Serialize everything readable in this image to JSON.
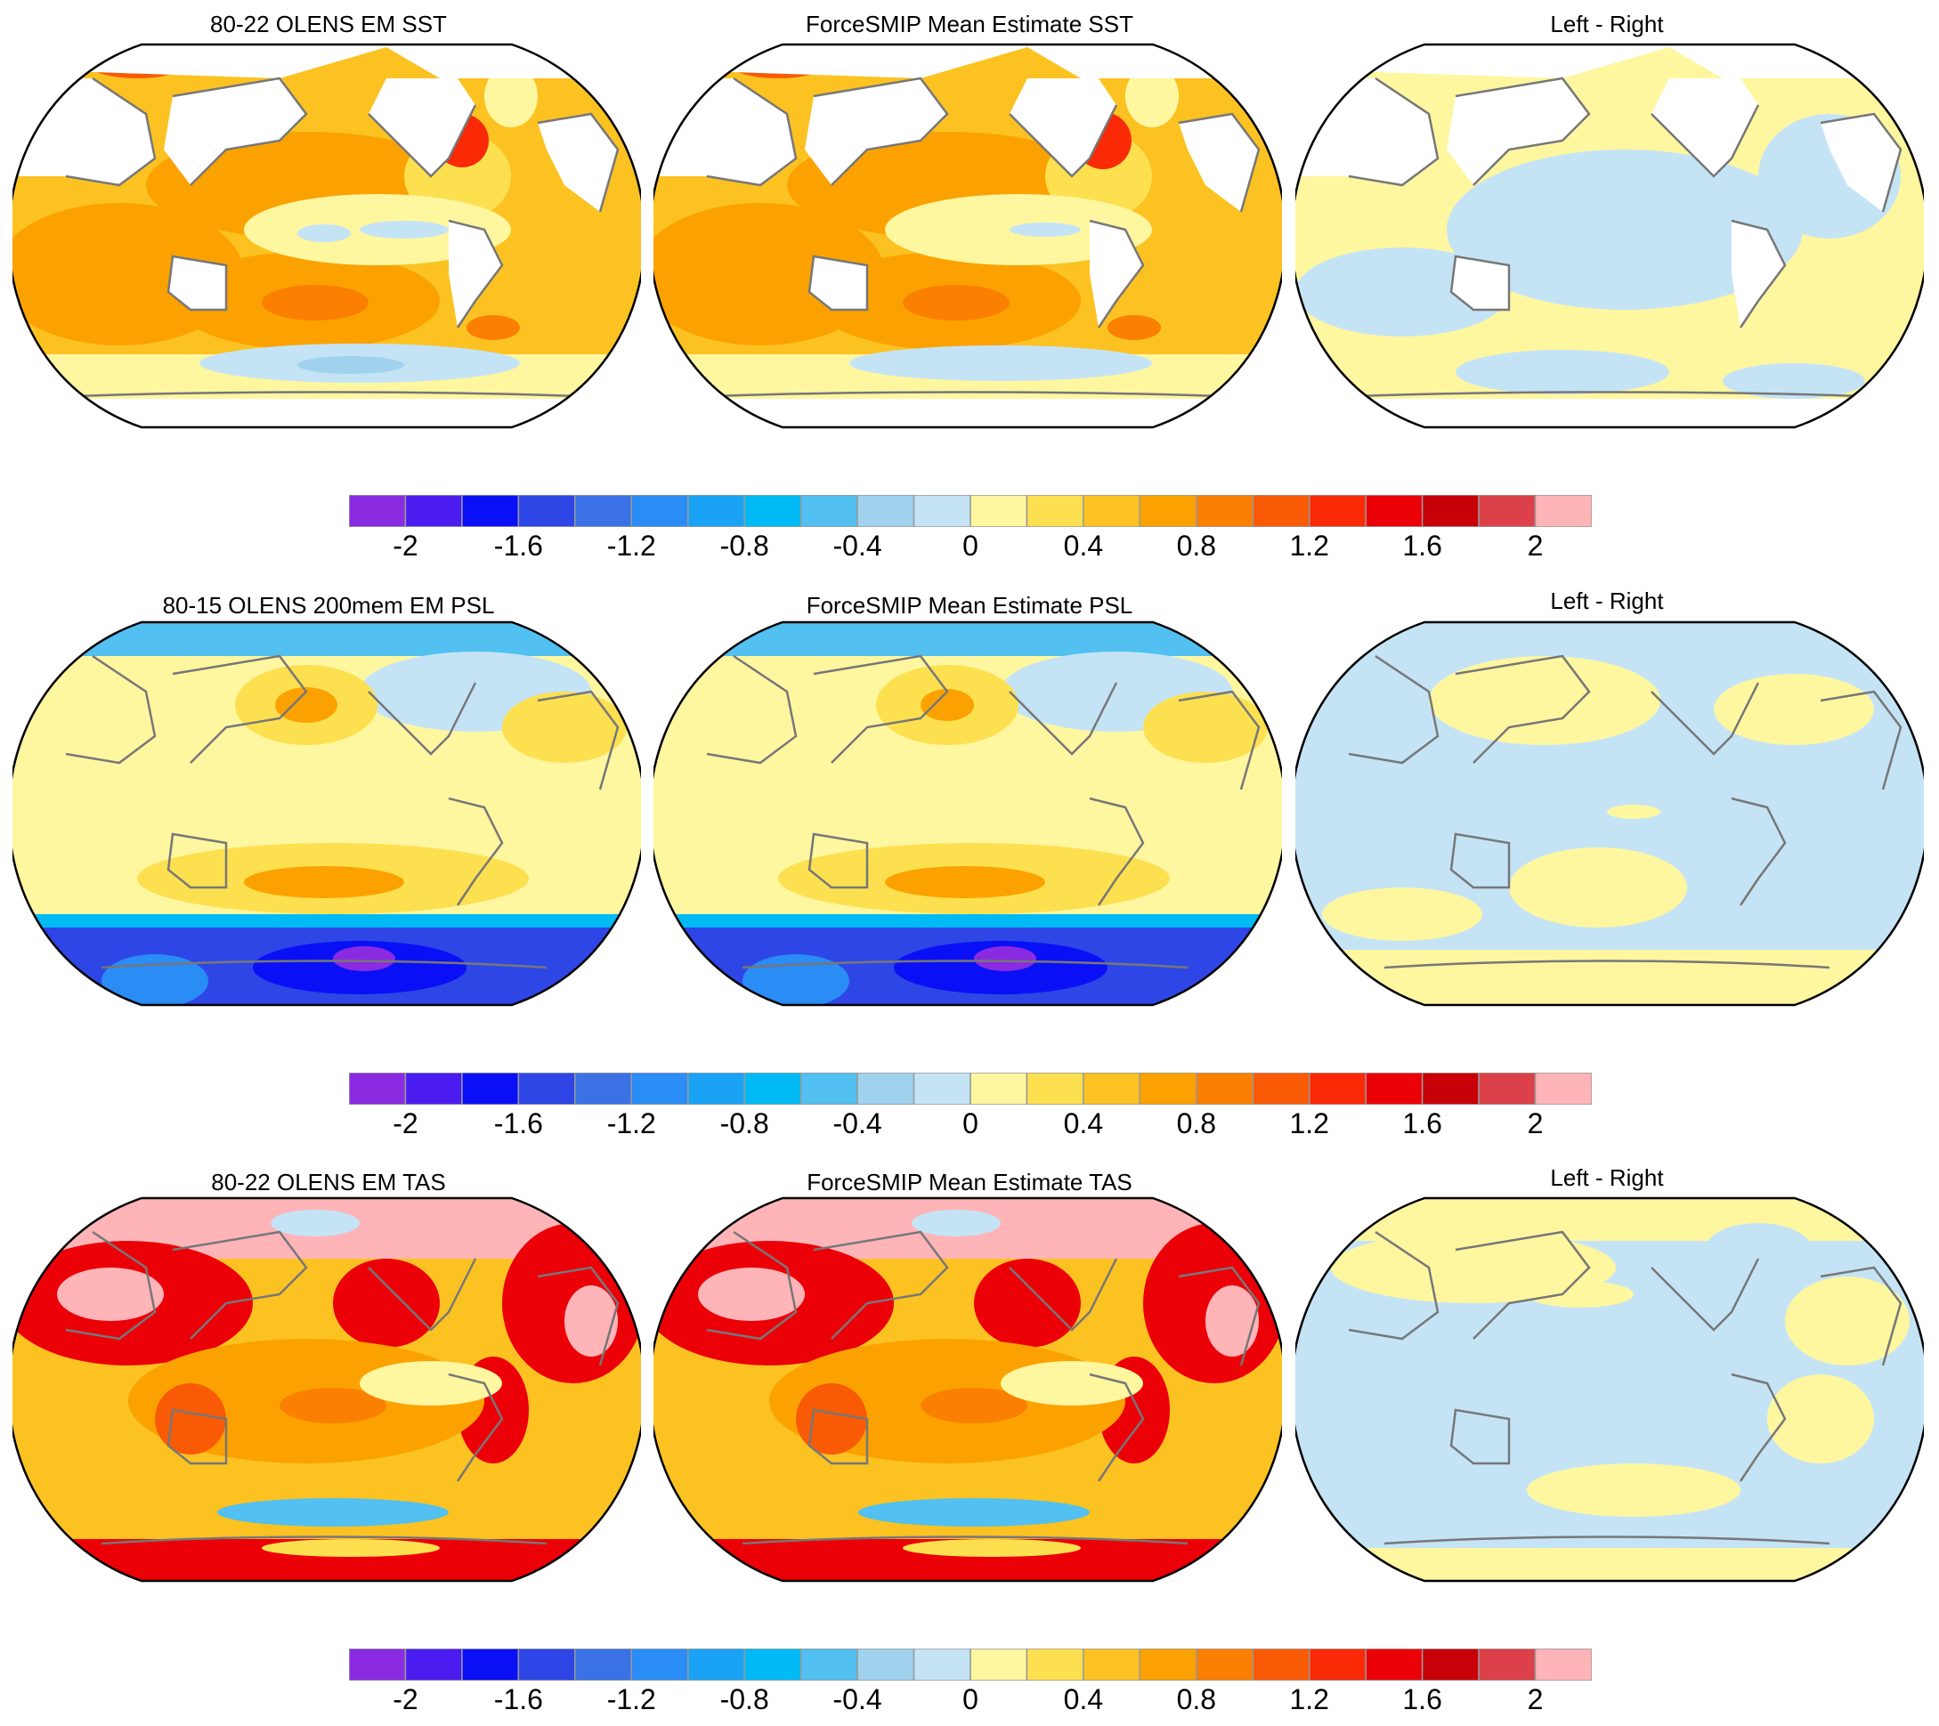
{
  "rows": [
    {
      "titles": [
        "80-22 OLENS EM SST",
        "ForceSMIP Mean Estimate SST",
        "Left - Right"
      ]
    },
    {
      "titles": [
        "80-15 OLENS 200mem EM PSL",
        "ForceSMIP Mean Estimate PSL",
        "Left - Right"
      ]
    },
    {
      "titles": [
        "80-22 OLENS EM TAS",
        "ForceSMIP Mean Estimate TAS",
        "Left - Right"
      ]
    }
  ],
  "colorbar": {
    "tick_labels": [
      "-2",
      "-1.6",
      "-1.2",
      "-0.8",
      "-0.4",
      "0",
      "0.4",
      "0.8",
      "1.2",
      "1.6",
      "2"
    ],
    "boundaries": [
      -2,
      -1.8,
      -1.6,
      -1.4,
      -1.2,
      -1,
      -0.8,
      -0.6,
      -0.4,
      -0.2,
      0,
      0.2,
      0.4,
      0.6,
      0.8,
      1,
      1.2,
      1.4,
      1.6,
      1.8,
      2
    ],
    "colors": [
      "#8a2be2",
      "#4a1cf0",
      "#0a10f5",
      "#2e46e6",
      "#3a72e6",
      "#2a8cf5",
      "#1aa2f5",
      "#00baf5",
      "#52c0f0",
      "#a0d2ee",
      "#c4e4f6",
      "#fff6a0",
      "#fde050",
      "#fcc222",
      "#fba200",
      "#fb7f00",
      "#f95a05",
      "#f92a05",
      "#ec0008",
      "#c80008",
      "#dc4048",
      "#ffb4b8"
    ]
  },
  "chart_data": [
    {
      "type": "heatmap",
      "title": "80-22 OLENS EM SST",
      "field": "SST",
      "projection": "Robinson, Pacific-centered",
      "note_masked": "land masked (white)",
      "range": [
        -2,
        2
      ]
    },
    {
      "type": "heatmap",
      "title": "ForceSMIP Mean Estimate SST",
      "field": "SST",
      "projection": "Robinson, Pacific-centered",
      "range": [
        -2,
        2
      ]
    },
    {
      "type": "heatmap",
      "title": "Left - Right",
      "field": "SST difference",
      "projection": "Robinson, Pacific-centered",
      "range": [
        -2,
        2
      ]
    },
    {
      "type": "heatmap",
      "title": "80-15 OLENS 200mem EM PSL",
      "field": "PSL",
      "projection": "Robinson, Pacific-centered",
      "range": [
        -2,
        2
      ]
    },
    {
      "type": "heatmap",
      "title": "ForceSMIP Mean Estimate PSL",
      "field": "PSL",
      "projection": "Robinson, Pacific-centered",
      "range": [
        -2,
        2
      ]
    },
    {
      "type": "heatmap",
      "title": "Left - Right",
      "field": "PSL difference",
      "projection": "Robinson, Pacific-centered",
      "range": [
        -2,
        2
      ]
    },
    {
      "type": "heatmap",
      "title": "80-22 OLENS EM TAS",
      "field": "TAS",
      "projection": "Robinson, Pacific-centered",
      "range": [
        -2,
        2
      ]
    },
    {
      "type": "heatmap",
      "title": "ForceSMIP Mean Estimate TAS",
      "field": "TAS",
      "projection": "Robinson, Pacific-centered",
      "range": [
        -2,
        2
      ]
    },
    {
      "type": "heatmap",
      "title": "Left - Right",
      "field": "TAS difference",
      "projection": "Robinson, Pacific-centered",
      "range": [
        -2,
        2
      ]
    }
  ]
}
